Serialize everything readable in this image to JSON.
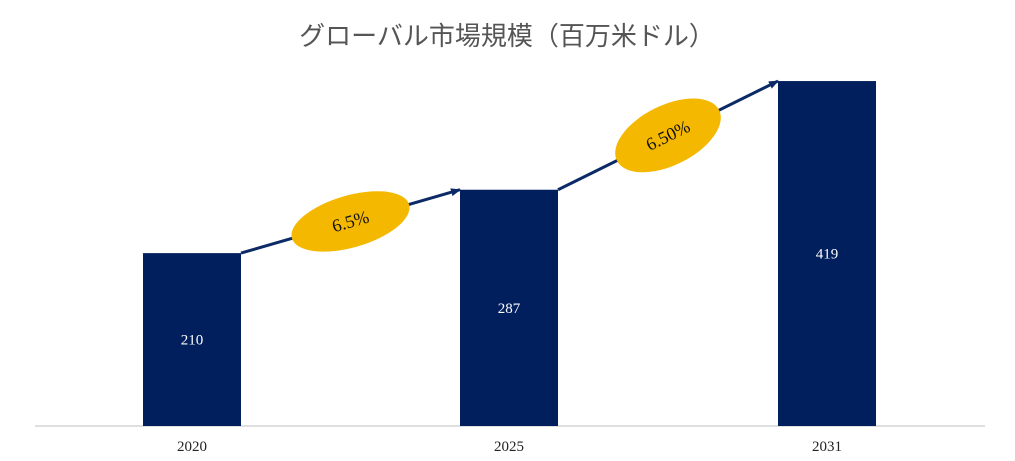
{
  "chart_data": {
    "type": "bar",
    "title": "グローバル市場規模（百万米ドル）",
    "categories": [
      "2020",
      "2025",
      "2031"
    ],
    "values": [
      210,
      287,
      419
    ],
    "data_labels": [
      "210",
      "287",
      "419"
    ],
    "growth_annotations": [
      {
        "from": "2020",
        "to": "2025",
        "label": "6.5%"
      },
      {
        "from": "2025",
        "to": "2031",
        "label": "6.50%"
      }
    ],
    "xlabel": "",
    "ylabel": "",
    "ylim": [
      0,
      430
    ],
    "grid": false,
    "legend": "none"
  },
  "colors": {
    "bar": "#001f5c",
    "arrow": "#0b2a66",
    "ellipse": "#f5b800",
    "axis": "#bfbfbf"
  }
}
